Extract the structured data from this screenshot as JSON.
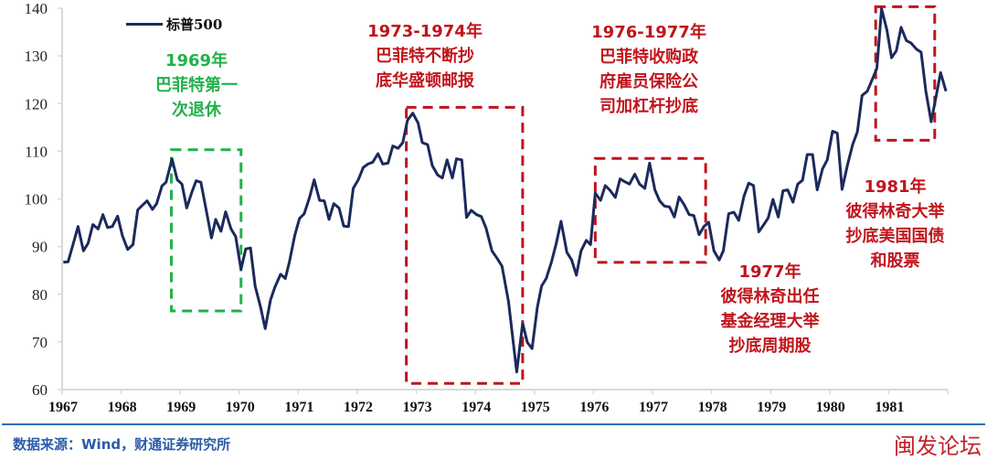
{
  "chart_data": {
    "type": "line",
    "title": "",
    "xlabel": "",
    "ylabel": "",
    "xlim": [
      1967,
      1982
    ],
    "ylim": [
      60,
      140
    ],
    "x_ticks": [
      "1967",
      "1968",
      "1969",
      "1970",
      "1971",
      "1972",
      "1973",
      "1974",
      "1975",
      "1976",
      "1977",
      "1978",
      "1979",
      "1980",
      "1981"
    ],
    "y_ticks": [
      60,
      70,
      80,
      90,
      100,
      110,
      120,
      130,
      140
    ],
    "grid": false,
    "legend": "top-left",
    "series": [
      {
        "name": "标普500",
        "color": "#1b2a5c",
        "x": [
          1967.02,
          1967.1,
          1967.19,
          1967.27,
          1967.36,
          1967.44,
          1967.52,
          1967.61,
          1967.69,
          1967.77,
          1967.85,
          1967.94,
          1968.02,
          1968.11,
          1968.2,
          1968.28,
          1968.36,
          1968.44,
          1968.53,
          1968.6,
          1968.69,
          1968.76,
          1968.86,
          1968.95,
          1969.03,
          1969.11,
          1969.2,
          1969.27,
          1969.35,
          1969.44,
          1969.53,
          1969.6,
          1969.69,
          1969.77,
          1969.86,
          1969.94,
          1970.03,
          1970.11,
          1970.19,
          1970.27,
          1970.36,
          1970.44,
          1970.53,
          1970.6,
          1970.7,
          1970.78,
          1970.85,
          1970.94,
          1971.02,
          1971.1,
          1971.19,
          1971.27,
          1971.36,
          1971.44,
          1971.52,
          1971.6,
          1971.69,
          1971.77,
          1971.85,
          1971.93,
          1972.02,
          1972.1,
          1972.18,
          1972.26,
          1972.35,
          1972.43,
          1972.52,
          1972.6,
          1972.69,
          1972.77,
          1972.85,
          1972.94,
          1973.03,
          1973.1,
          1973.19,
          1973.27,
          1973.36,
          1973.44,
          1973.52,
          1973.61,
          1973.68,
          1973.77,
          1973.85,
          1973.93,
          1974.02,
          1974.1,
          1974.18,
          1974.28,
          1974.37,
          1974.45,
          1974.56,
          1974.7,
          1974.8,
          1974.88,
          1974.96,
          1975.05,
          1975.12,
          1975.2,
          1975.29,
          1975.37,
          1975.45,
          1975.55,
          1975.63,
          1975.71,
          1975.79,
          1975.88,
          1975.95,
          1976.03,
          1976.12,
          1976.2,
          1976.28,
          1976.37,
          1976.45,
          1976.53,
          1976.61,
          1976.7,
          1976.78,
          1976.87,
          1976.95,
          1977.04,
          1977.12,
          1977.2,
          1977.29,
          1977.37,
          1977.45,
          1977.54,
          1977.62,
          1977.7,
          1977.79,
          1977.87,
          1977.95,
          1978.04,
          1978.13,
          1978.2,
          1978.29,
          1978.38,
          1978.46,
          1978.55,
          1978.63,
          1978.71,
          1978.8,
          1978.88,
          1978.96,
          1979.04,
          1979.13,
          1979.21,
          1979.29,
          1979.38,
          1979.46,
          1979.54,
          1979.62,
          1979.71,
          1979.79,
          1979.88,
          1979.96,
          1980.05,
          1980.13,
          1980.21,
          1980.3,
          1980.39,
          1980.47,
          1980.55,
          1980.64,
          1980.72,
          1980.8,
          1980.88,
          1980.97,
          1981.05,
          1981.13,
          1981.21,
          1981.3,
          1981.38,
          1981.47,
          1981.55,
          1981.63,
          1981.72,
          1981.8,
          1981.88,
          1981.97
        ],
        "y": [
          86.7,
          86.8,
          90.7,
          94.2,
          89.1,
          90.7,
          94.6,
          93.7,
          96.7,
          94.0,
          94.2,
          96.4,
          92.3,
          89.4,
          90.4,
          97.7,
          98.7,
          99.6,
          97.8,
          99.0,
          102.7,
          103.5,
          108.4,
          104.0,
          103.1,
          98.1,
          101.5,
          103.8,
          103.5,
          97.7,
          91.8,
          95.7,
          93.2,
          97.3,
          93.7,
          92.1,
          85.2,
          89.5,
          89.7,
          81.7,
          77.3,
          72.8,
          78.8,
          81.4,
          84.2,
          83.3,
          86.8,
          92.3,
          95.9,
          96.9,
          100.3,
          104.0,
          99.7,
          99.6,
          95.7,
          99.0,
          98.1,
          94.3,
          94.2,
          102.2,
          104.1,
          106.6,
          107.3,
          107.7,
          109.5,
          107.3,
          107.5,
          111.1,
          110.6,
          111.8,
          116.5,
          118.0,
          115.9,
          111.8,
          111.4,
          107.0,
          105.0,
          104.4,
          108.2,
          104.4,
          108.4,
          108.2,
          96.1,
          97.6,
          96.7,
          96.3,
          93.9,
          89.1,
          87.5,
          85.9,
          78.5,
          63.7,
          73.9,
          69.9,
          68.6,
          77.3,
          81.7,
          83.3,
          86.8,
          90.7,
          95.3,
          88.8,
          87.2,
          84.0,
          89.1,
          91.3,
          90.4,
          101.2,
          99.7,
          102.8,
          101.8,
          100.3,
          104.2,
          103.6,
          103.1,
          105.2,
          103.1,
          102.2,
          107.5,
          101.9,
          99.6,
          98.5,
          98.3,
          96.2,
          100.4,
          98.7,
          96.7,
          96.5,
          92.5,
          94.2,
          95.1,
          89.1,
          87.2,
          89.1,
          96.9,
          97.2,
          95.5,
          100.6,
          103.3,
          102.8,
          93.1,
          94.5,
          96.0,
          99.9,
          96.2,
          101.7,
          101.9,
          99.3,
          103.1,
          103.9,
          109.3,
          109.3,
          101.9,
          106.3,
          108.2,
          114.2,
          113.8,
          102.0,
          107.0,
          111.4,
          114.1,
          121.7,
          122.6,
          125.0,
          127.4,
          139.9,
          135.4,
          129.6,
          131.1,
          136.0,
          133.2,
          132.7,
          131.4,
          130.8,
          122.6,
          116.2,
          121.3,
          126.5,
          122.6
        ]
      }
    ],
    "highlight_boxes": [
      {
        "color": "#22b14c",
        "x": [
          1968.85,
          1970.03
        ],
        "y": [
          76.5,
          110.3
        ]
      },
      {
        "color": "#c0141c",
        "x": [
          1972.83,
          1974.8
        ],
        "y": [
          61.3,
          119.2
        ]
      },
      {
        "color": "#c0141c",
        "x": [
          1976.03,
          1977.9
        ],
        "y": [
          86.7,
          108.5
        ]
      },
      {
        "color": "#c0141c",
        "x": [
          1980.78,
          1981.78
        ],
        "y": [
          112.3,
          140.3
        ]
      }
    ],
    "annotations": [
      {
        "lines": [
          "1969年",
          "巴菲特第一",
          "次退休"
        ],
        "color": "#22b14c"
      },
      {
        "lines": [
          "1973-1974年",
          "巴菲特不断抄",
          "底华盛顿邮报"
        ],
        "color": "#c0141c"
      },
      {
        "lines": [
          "1976-1977年",
          "巴菲特收购政",
          "府雇员保险公",
          "司加杠杆抄底"
        ],
        "color": "#c0141c"
      },
      {
        "lines": [
          "1977年",
          "彼得林奇出任",
          "基金经理大举",
          "抄底周期股"
        ],
        "color": "#c0141c"
      },
      {
        "lines": [
          "1981年",
          "彼得林奇大举",
          "抄底美国国债",
          "和股票"
        ],
        "color": "#c0141c"
      }
    ]
  },
  "footer": {
    "source": "数据来源：Wind，财通证券研究所",
    "watermark": "闽发论坛"
  }
}
